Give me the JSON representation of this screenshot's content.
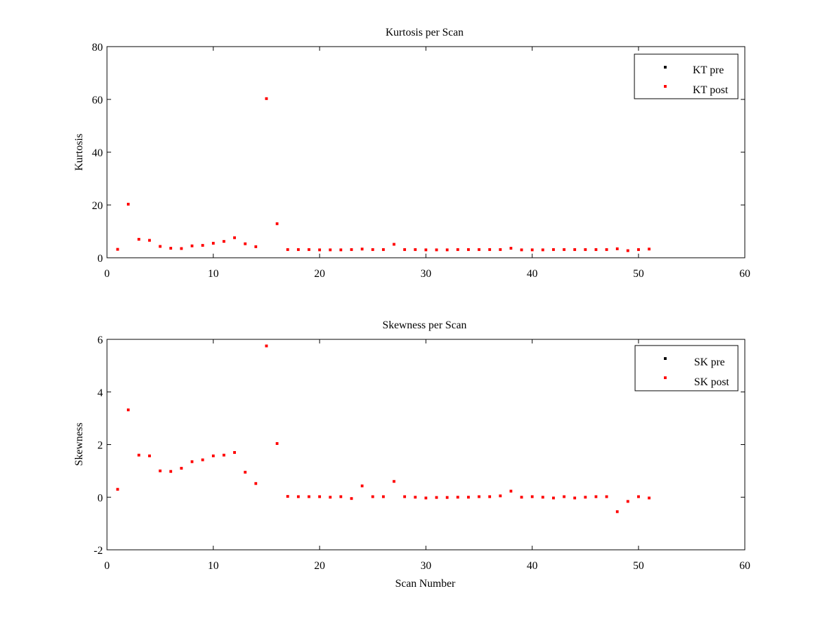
{
  "chart_data": [
    {
      "type": "scatter",
      "title": "Kurtosis per Scan",
      "xlabel": "",
      "ylabel": "Kurtosis",
      "xlim": [
        0,
        60
      ],
      "ylim": [
        0,
        80
      ],
      "xticks": [
        0,
        10,
        20,
        30,
        40,
        50,
        60
      ],
      "yticks": [
        0,
        20,
        40,
        60,
        80
      ],
      "legend_position": "top-right",
      "series": [
        {
          "name": "KT pre",
          "color": "#000000",
          "x": [],
          "y": []
        },
        {
          "name": "KT post",
          "color": "#ff0000",
          "x": [
            1,
            2,
            3,
            4,
            5,
            6,
            7,
            8,
            9,
            10,
            11,
            12,
            13,
            14,
            15,
            16,
            17,
            18,
            19,
            20,
            21,
            22,
            23,
            24,
            25,
            26,
            27,
            28,
            29,
            30,
            31,
            32,
            33,
            34,
            35,
            36,
            37,
            38,
            39,
            40,
            41,
            42,
            43,
            44,
            45,
            46,
            47,
            48,
            49,
            50,
            51
          ],
          "y": [
            3.2,
            20.3,
            7.0,
            6.6,
            4.3,
            3.6,
            3.5,
            4.5,
            4.7,
            5.5,
            6.2,
            7.6,
            5.3,
            4.2,
            60.3,
            12.9,
            3.1,
            3.1,
            3.1,
            3.0,
            3.0,
            3.0,
            3.1,
            3.3,
            3.1,
            3.1,
            5.1,
            3.1,
            3.1,
            3.0,
            3.0,
            3.0,
            3.1,
            3.1,
            3.1,
            3.1,
            3.1,
            3.6,
            3.0,
            3.0,
            3.0,
            3.1,
            3.1,
            3.1,
            3.1,
            3.1,
            3.1,
            3.4,
            2.7,
            3.1,
            3.3
          ]
        }
      ]
    },
    {
      "type": "scatter",
      "title": "Skewness per Scan",
      "xlabel": "Scan Number",
      "ylabel": "Skewness",
      "xlim": [
        0,
        60
      ],
      "ylim": [
        -2,
        6
      ],
      "xticks": [
        0,
        10,
        20,
        30,
        40,
        50,
        60
      ],
      "yticks": [
        -2,
        0,
        2,
        4,
        6
      ],
      "legend_position": "top-right",
      "series": [
        {
          "name": "SK pre",
          "color": "#000000",
          "x": [],
          "y": []
        },
        {
          "name": "SK post",
          "color": "#ff0000",
          "x": [
            1,
            2,
            3,
            4,
            5,
            6,
            7,
            8,
            9,
            10,
            11,
            12,
            13,
            14,
            15,
            16,
            17,
            18,
            19,
            20,
            21,
            22,
            23,
            24,
            25,
            26,
            27,
            28,
            29,
            30,
            31,
            32,
            33,
            34,
            35,
            36,
            37,
            38,
            39,
            40,
            41,
            42,
            43,
            44,
            45,
            46,
            47,
            48,
            49,
            50,
            51
          ],
          "y": [
            0.3,
            3.32,
            1.6,
            1.57,
            1.0,
            0.98,
            1.1,
            1.35,
            1.42,
            1.57,
            1.6,
            1.7,
            0.95,
            0.52,
            5.75,
            2.04,
            0.03,
            0.02,
            0.02,
            0.02,
            0.0,
            0.02,
            -0.05,
            0.43,
            0.02,
            0.02,
            0.6,
            0.02,
            0.0,
            -0.03,
            -0.01,
            -0.01,
            0.0,
            0.0,
            0.02,
            0.02,
            0.05,
            0.23,
            0.0,
            0.02,
            0.0,
            -0.03,
            0.02,
            -0.03,
            0.0,
            0.02,
            0.02,
            -0.55,
            -0.16,
            0.02,
            -0.03
          ]
        }
      ]
    }
  ]
}
